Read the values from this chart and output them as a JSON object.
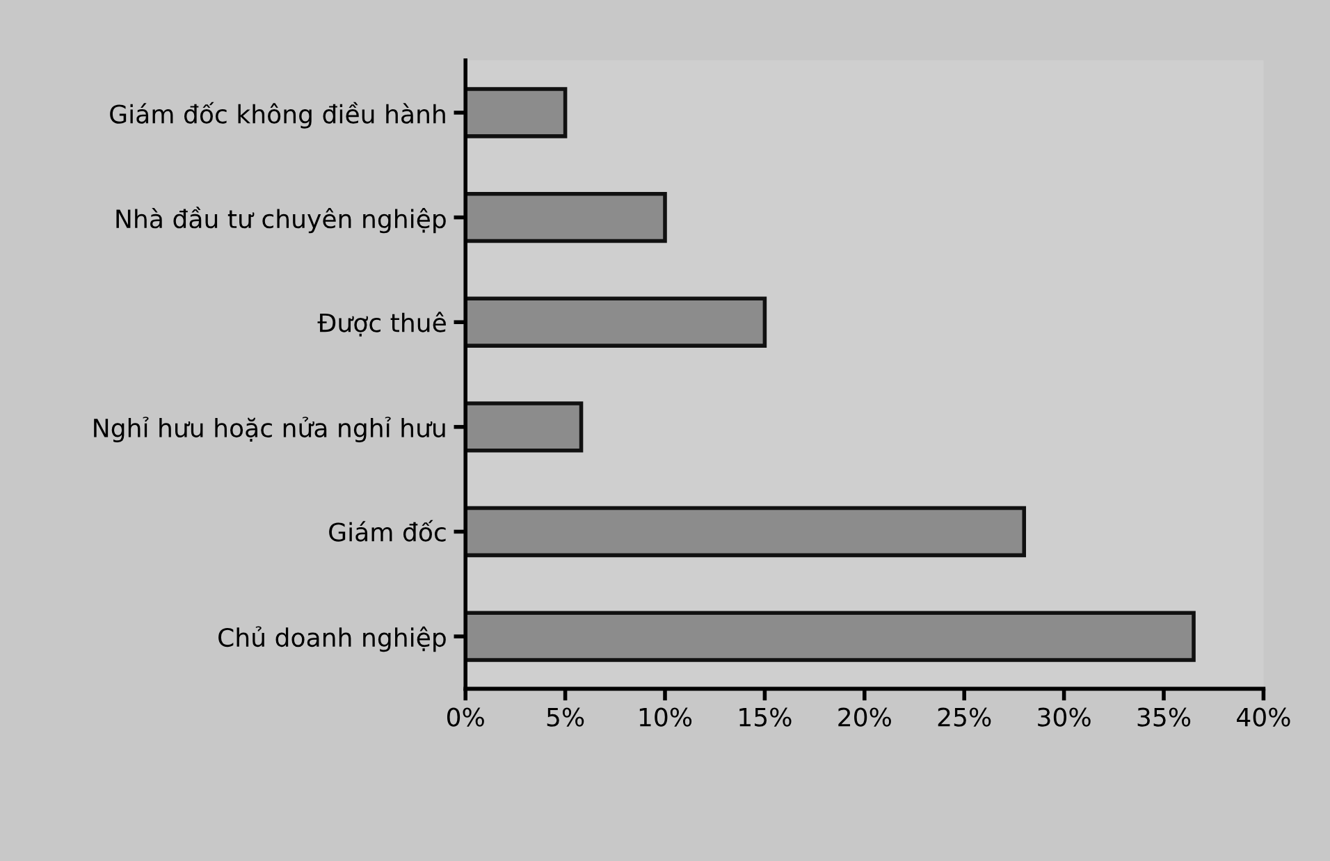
{
  "chart_data": {
    "type": "bar",
    "orientation": "horizontal",
    "categories": [
      "Giám đốc không điều hành",
      "Nhà đầu tư chuyên nghiệp",
      "Được thuê",
      "Nghỉ hưu hoặc nửa nghỉ hưu",
      "Giám đốc",
      "Chủ doanh nghiệp"
    ],
    "values": [
      5,
      10,
      15,
      5.8,
      28,
      36.5
    ],
    "color": "#8c8c8c",
    "xlim": [
      0,
      40
    ],
    "xticks": [
      {
        "value": 0,
        "label": "0%"
      },
      {
        "value": 5,
        "label": "5%"
      },
      {
        "value": 10,
        "label": "10%"
      },
      {
        "value": 15,
        "label": "15%"
      },
      {
        "value": 20,
        "label": "20%"
      },
      {
        "value": 25,
        "label": "25%"
      },
      {
        "value": 30,
        "label": "30%"
      },
      {
        "value": 35,
        "label": "35%"
      },
      {
        "value": 40,
        "label": "40%"
      }
    ],
    "grid": false,
    "legend": false
  }
}
